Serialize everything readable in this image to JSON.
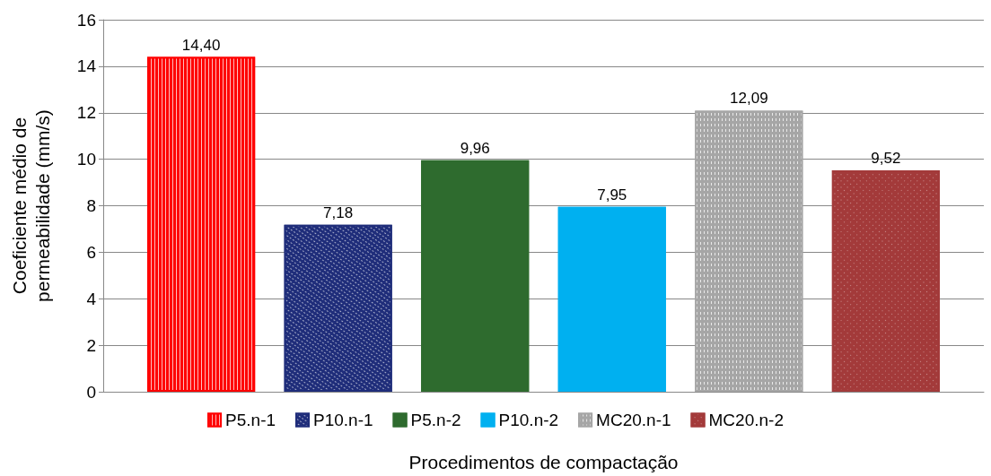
{
  "chart_data": {
    "type": "bar",
    "xlabel": "Procedimentos de compactação",
    "ylabel": "Coeficiente médio de\npermeabilidade (mm/s)",
    "categories": [
      null
    ],
    "series": [
      {
        "name": "P5.n-1",
        "color": "#ff0000",
        "values": [
          14.4
        ],
        "value_labels": [
          "14,40"
        ]
      },
      {
        "name": "P10.n-1",
        "color": "#1f2d7a",
        "values": [
          7.18
        ],
        "value_labels": [
          "7,18"
        ]
      },
      {
        "name": "P5.n-2",
        "color": "#2e6b2e",
        "values": [
          9.96
        ],
        "value_labels": [
          "9,96"
        ]
      },
      {
        "name": "P10.n-2",
        "color": "#00b0f0",
        "values": [
          7.95
        ],
        "value_labels": [
          "7,95"
        ]
      },
      {
        "name": "MC20.n-1",
        "color": "#a6a6a6",
        "values": [
          12.09
        ],
        "value_labels": [
          "12,09"
        ]
      },
      {
        "name": "MC20.n-2",
        "color": "#a33a3a",
        "values": [
          9.52
        ],
        "value_labels": [
          "9,52"
        ]
      }
    ],
    "ylim": [
      0,
      16
    ],
    "yticks": [
      0,
      2,
      4,
      6,
      8,
      10,
      12,
      14,
      16
    ],
    "grid": "y",
    "legend": "bottom"
  }
}
